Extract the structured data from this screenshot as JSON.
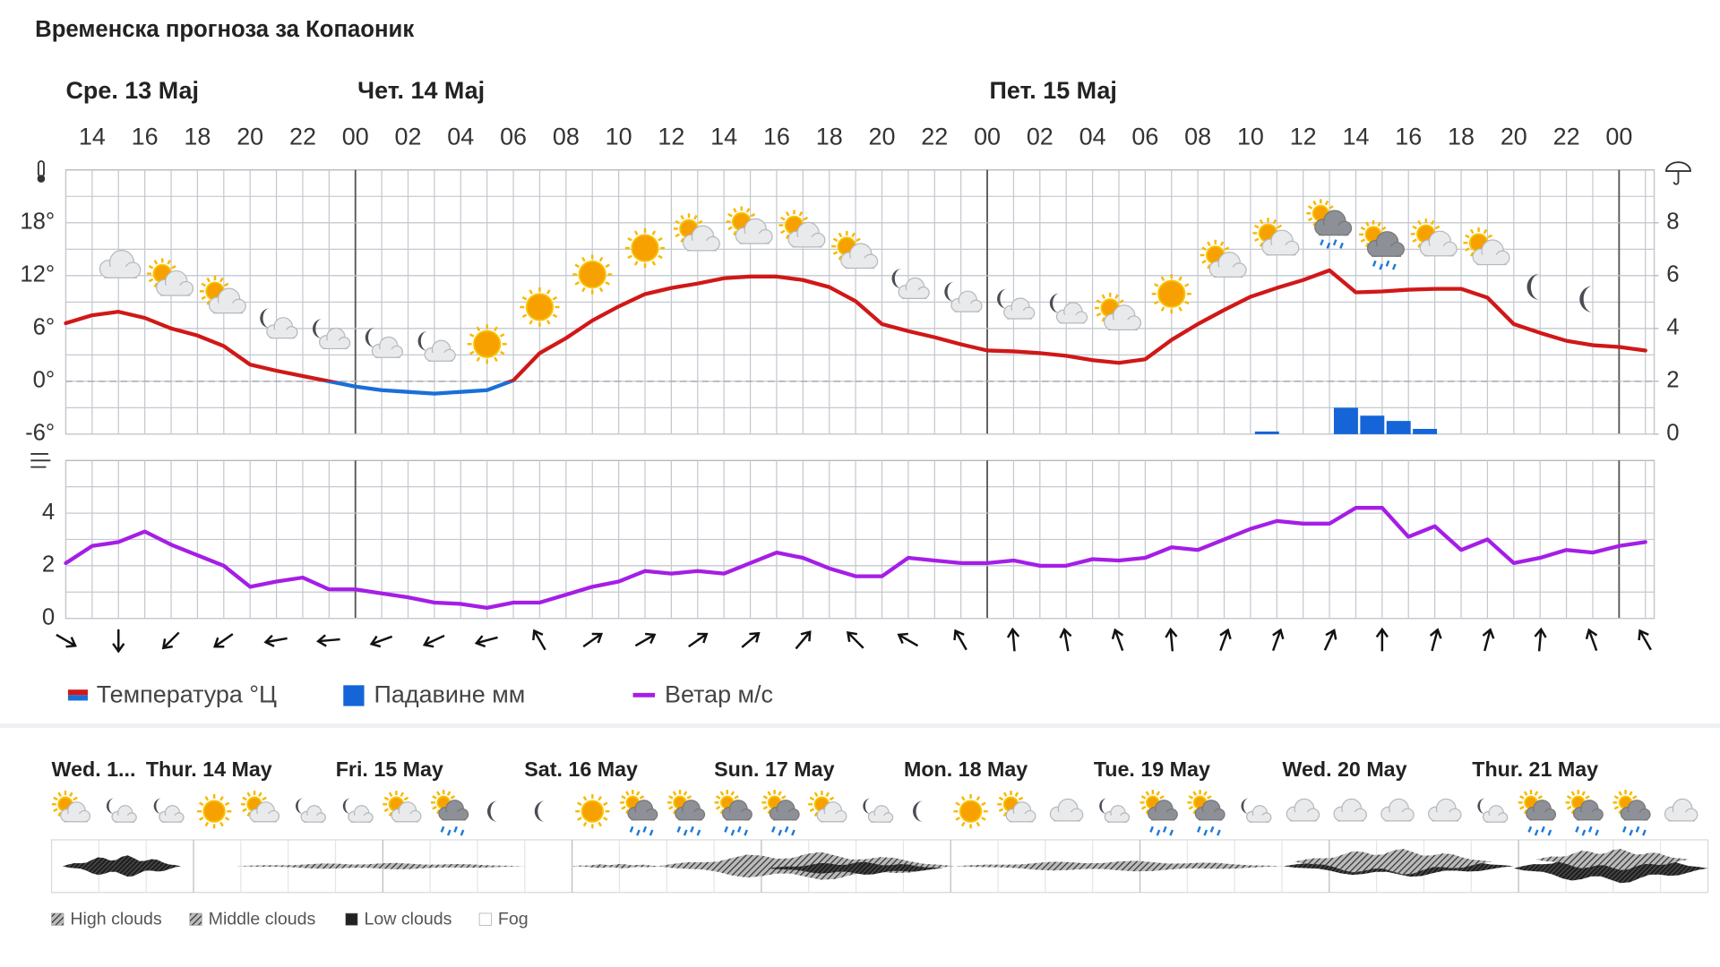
{
  "header": {
    "title": "Временска прогноза за Копаоник",
    "day_labels": [
      "Сре. 13 Мај",
      "Чет. 14 Мај",
      "Пет. 15 Мај"
    ]
  },
  "chart_data": [
    {
      "type": "line",
      "categories": [
        null,
        "14",
        null,
        "16",
        null,
        "18",
        null,
        "20",
        null,
        "22",
        null,
        "00",
        null,
        "02",
        null,
        "04",
        null,
        "06",
        null,
        "08",
        null,
        "10",
        null,
        "12",
        null,
        "14",
        null,
        "16",
        null,
        "18",
        null,
        "20",
        null,
        "22",
        null,
        "00",
        null,
        "02",
        null,
        "04",
        null,
        "06",
        null,
        "08",
        null,
        "10",
        null,
        "12",
        null,
        "14",
        null,
        "16",
        null,
        "18",
        null,
        "20",
        null,
        "22",
        null,
        "00",
        null
      ],
      "series": [
        {
          "name": "Температура °Ц",
          "color": "#d01818",
          "color_below_zero": "#1a6fd8",
          "values": [
            6.6,
            7.5,
            7.9,
            7.2,
            6,
            5.2,
            4,
            1.9,
            1.2,
            0.6,
            0,
            -0.6,
            -1,
            -1.2,
            -1.4,
            -1.2,
            -1,
            0.1,
            3.2,
            4.9,
            6.9,
            8.5,
            9.9,
            10.6,
            11.1,
            11.7,
            11.9,
            11.9,
            11.5,
            10.7,
            9.1,
            6.5,
            5.7,
            5,
            4.2,
            3.5,
            3.4,
            3.2,
            2.9,
            2.4,
            2.1,
            2.5,
            4.7,
            6.5,
            8.1,
            9.6,
            10.6,
            11.5,
            12.6,
            10.1,
            10.2,
            10.4,
            10.5,
            10.5,
            9.5,
            6.5,
            5.5,
            4.6,
            4.1,
            3.9,
            3.5
          ]
        },
        {
          "name": "Падавине мм",
          "type": "bar",
          "axis": "y2",
          "color": "#1565d8",
          "values": [
            0,
            0,
            0,
            0,
            0,
            0,
            0,
            0,
            0,
            0,
            0,
            0,
            0,
            0,
            0,
            0,
            0,
            0,
            0,
            0,
            0,
            0,
            0,
            0,
            0,
            0,
            0,
            0,
            0,
            0,
            0,
            0,
            0,
            0,
            0,
            0,
            0,
            0,
            0,
            0,
            0,
            0,
            0,
            0,
            0,
            0.1,
            0,
            0,
            1.0,
            0.7,
            0.5,
            0.2,
            0,
            0,
            0,
            0,
            0,
            0,
            0,
            0,
            0
          ]
        }
      ],
      "ylim": [
        -6,
        24
      ],
      "yticks": [
        {
          "value": -6,
          "label": "-6°"
        },
        {
          "value": 0,
          "label": "0°"
        },
        {
          "value": 6,
          "label": "6°"
        },
        {
          "value": 12,
          "label": "12°"
        },
        {
          "value": 18,
          "label": "18°"
        }
      ],
      "y2lim": [
        0,
        10
      ],
      "y2ticks": [
        0,
        2,
        4,
        6,
        8
      ],
      "grid": true
    },
    {
      "type": "line",
      "series": [
        {
          "name": "Ветар м/с",
          "color": "#a51ee6",
          "values": [
            2.1,
            2.75,
            2.9,
            3.3,
            2.8,
            2.4,
            2.0,
            1.2,
            1.4,
            1.55,
            1.1,
            1.1,
            0.95,
            0.8,
            0.6,
            0.55,
            0.4,
            0.6,
            0.6,
            0.9,
            1.2,
            1.4,
            1.8,
            1.7,
            1.8,
            1.7,
            2.1,
            2.5,
            2.3,
            1.9,
            1.6,
            1.6,
            2.3,
            2.2,
            2.1,
            2.1,
            2.2,
            2.0,
            2.0,
            2.25,
            2.2,
            2.3,
            2.7,
            2.6,
            3.0,
            3.4,
            3.7,
            3.6,
            3.6,
            4.2,
            4.2,
            3.1,
            3.5,
            2.6,
            3.0,
            2.1,
            2.3,
            2.6,
            2.5,
            2.75,
            2.9
          ]
        }
      ],
      "directions": [
        120,
        null,
        180,
        null,
        225,
        null,
        235,
        null,
        260,
        null,
        265,
        null,
        250,
        null,
        245,
        null,
        255,
        null,
        330,
        null,
        55,
        null,
        60,
        null,
        55,
        null,
        50,
        null,
        40,
        null,
        315,
        null,
        300,
        null,
        330,
        null,
        355,
        null,
        350,
        null,
        340,
        null,
        355,
        null,
        20,
        null,
        20,
        null,
        25,
        null,
        0,
        null,
        15,
        null,
        15,
        null,
        5,
        null,
        340,
        null,
        330
      ],
      "ylim": [
        0,
        6
      ],
      "yticks": [
        0,
        2,
        4
      ],
      "grid": true
    }
  ],
  "forecast_strip": {
    "days": [
      "Wed. 1...",
      "Thur. 14 May",
      "Fri. 15 May",
      "Sat. 16 May",
      "Sun. 17 May",
      "Mon. 18 May",
      "Tue. 19 May",
      "Wed. 20 May",
      "Thur. 21 May"
    ],
    "cloud_legend": [
      "High clouds",
      "Middle clouds",
      "Low clouds",
      "Fog"
    ]
  }
}
